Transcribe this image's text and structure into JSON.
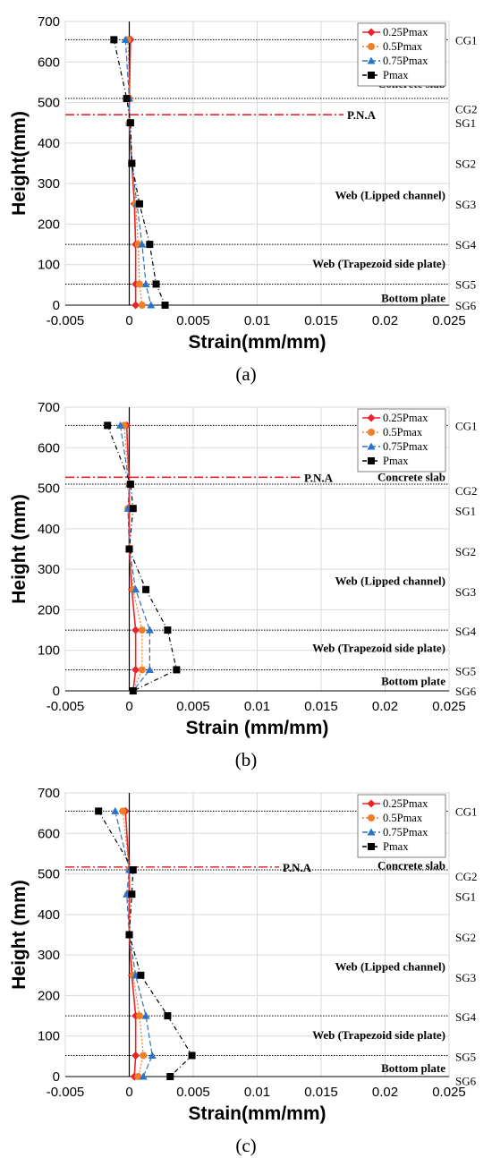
{
  "chart_data": [
    {
      "type": "line",
      "caption": "(a)",
      "xlabel": "Strain(mm/mm)",
      "ylabel": "Height(mm)",
      "xlim": [
        -0.005,
        0.025
      ],
      "ylim": [
        0,
        700
      ],
      "xticks": [
        "-0.005",
        "0",
        "0.005",
        "0.01",
        "0.015",
        "0.02",
        "0.025"
      ],
      "yticks": [
        "0",
        "100",
        "200",
        "300",
        "400",
        "500",
        "600",
        "700"
      ],
      "grid": true,
      "legend_position": "top-right",
      "pna": {
        "label": "P.N.A",
        "y": 470
      },
      "boundaries": [
        655,
        510,
        150,
        52
      ],
      "regions": [
        {
          "label": "Concrete slab",
          "y": 545
        },
        {
          "label": "Web (Lipped channel)",
          "y": 270
        },
        {
          "label": "Web (Trapezoid side plate)",
          "y": 102
        },
        {
          "label": "Bottom plate",
          "y": 17
        }
      ],
      "gauges": [
        {
          "label": "CG1",
          "y": 655
        },
        {
          "label": "CG2",
          "y": 485
        },
        {
          "label": "SG1",
          "y": 450
        },
        {
          "label": "SG2",
          "y": 350
        },
        {
          "label": "SG3",
          "y": 250
        },
        {
          "label": "SG4",
          "y": 150
        },
        {
          "label": "SG5",
          "y": 52
        },
        {
          "label": "SG6",
          "y": 0
        }
      ],
      "series": [
        {
          "name": "0.25Pmax",
          "color": "#e8242b",
          "x": [
            0.0001,
            0.0,
            0.0,
            0.0002,
            0.0004,
            0.0005,
            0.0005,
            0.0005
          ],
          "y": [
            655,
            510,
            450,
            350,
            250,
            150,
            52,
            0
          ]
        },
        {
          "name": "0.5Pmax",
          "color": "#f07e26",
          "x": [
            -0.0001,
            0.0,
            0.0,
            0.0002,
            0.0005,
            0.0007,
            0.0008,
            0.001
          ],
          "y": [
            655,
            510,
            450,
            350,
            250,
            150,
            52,
            0
          ]
        },
        {
          "name": "0.75Pmax",
          "color": "#2a73c8",
          "x": [
            -0.0003,
            0.0,
            0.0,
            0.0002,
            0.0006,
            0.001,
            0.0013,
            0.0017
          ],
          "y": [
            655,
            510,
            450,
            350,
            250,
            150,
            52,
            0
          ]
        },
        {
          "name": "Pmax",
          "color": "#000000",
          "x": [
            -0.0012,
            -0.0002,
            0.0001,
            0.0002,
            0.0008,
            0.0016,
            0.0021,
            0.0028
          ],
          "y": [
            655,
            510,
            450,
            350,
            250,
            150,
            52,
            0
          ]
        }
      ]
    },
    {
      "type": "line",
      "caption": "(b)",
      "xlabel": "Strain (mm/mm)",
      "ylabel": "Height (mm)",
      "xlim": [
        -0.005,
        0.025
      ],
      "ylim": [
        0,
        700
      ],
      "xticks": [
        "-0.005",
        "0",
        "0.005",
        "0.01",
        "0.015",
        "0.02",
        "0.025"
      ],
      "yticks": [
        "0",
        "100",
        "200",
        "300",
        "400",
        "500",
        "600",
        "700"
      ],
      "grid": true,
      "legend_position": "top-right",
      "pna": {
        "label": "P.N.A",
        "y": 527
      },
      "boundaries": [
        655,
        510,
        150,
        52
      ],
      "regions": [
        {
          "label": "Concrete slab",
          "y": 527
        },
        {
          "label": "Web (Lipped channel)",
          "y": 270
        },
        {
          "label": "Web (Trapezoid side plate)",
          "y": 105
        },
        {
          "label": "Bottom plate",
          "y": 23
        }
      ],
      "gauges": [
        {
          "label": "CG1",
          "y": 655
        },
        {
          "label": "CG2",
          "y": 495
        },
        {
          "label": "SG1",
          "y": 445
        },
        {
          "label": "SG2",
          "y": 345
        },
        {
          "label": "SG3",
          "y": 245
        },
        {
          "label": "SG4",
          "y": 148
        },
        {
          "label": "SG5",
          "y": 50
        },
        {
          "label": "SG6",
          "y": 0
        }
      ],
      "series": [
        {
          "name": "0.25Pmax",
          "color": "#e8242b",
          "x": [
            -0.0002,
            0.0,
            0.0,
            0.0,
            0.0002,
            0.0005,
            0.0005,
            0.0003
          ],
          "y": [
            655,
            510,
            450,
            350,
            250,
            150,
            52,
            0
          ]
        },
        {
          "name": "0.5Pmax",
          "color": "#f07e26",
          "x": [
            -0.0004,
            0.0,
            -0.0001,
            0.0,
            0.0003,
            0.001,
            0.001,
            0.0003
          ],
          "y": [
            655,
            510,
            450,
            350,
            250,
            150,
            52,
            0
          ]
        },
        {
          "name": "0.75Pmax",
          "color": "#2a73c8",
          "x": [
            -0.0007,
            0.0,
            -0.0001,
            0.0,
            0.0005,
            0.0016,
            0.0016,
            0.0003
          ],
          "y": [
            655,
            510,
            450,
            350,
            250,
            150,
            52,
            0
          ]
        },
        {
          "name": "Pmax",
          "color": "#000000",
          "x": [
            -0.0017,
            0.0001,
            0.0003,
            0.0,
            0.0013,
            0.003,
            0.0037,
            0.0003
          ],
          "y": [
            655,
            510,
            450,
            350,
            250,
            150,
            52,
            0
          ]
        }
      ]
    },
    {
      "type": "line",
      "caption": "(c)",
      "xlabel": "Strain(mm/mm)",
      "ylabel": "Height (mm)",
      "xlim": [
        -0.005,
        0.025
      ],
      "ylim": [
        0,
        700
      ],
      "xticks": [
        "-0.005",
        "0",
        "0.005",
        "0.01",
        "0.015",
        "0.02",
        "0.025"
      ],
      "yticks": [
        "0",
        "100",
        "200",
        "300",
        "400",
        "500",
        "600",
        "700"
      ],
      "grid": true,
      "legend_position": "top-right",
      "pna": {
        "label": "P.N.A",
        "y": 517
      },
      "boundaries": [
        655,
        510,
        150,
        52
      ],
      "regions": [
        {
          "label": "Concrete slab",
          "y": 520
        },
        {
          "label": "Web (Lipped channel)",
          "y": 270
        },
        {
          "label": "Web (Trapezoid side plate)",
          "y": 102
        },
        {
          "label": "Bottom plate",
          "y": 20
        }
      ],
      "gauges": [
        {
          "label": "CG1",
          "y": 655
        },
        {
          "label": "CG2",
          "y": 495
        },
        {
          "label": "SG1",
          "y": 445
        },
        {
          "label": "SG2",
          "y": 345
        },
        {
          "label": "SG3",
          "y": 245
        },
        {
          "label": "SG4",
          "y": 148
        },
        {
          "label": "SG5",
          "y": 50
        },
        {
          "label": "SG6",
          "y": -10
        }
      ],
      "series": [
        {
          "name": "0.25Pmax",
          "color": "#e8242b",
          "x": [
            -0.0003,
            0.0,
            0.0,
            0.0,
            0.0002,
            0.0005,
            0.0005,
            0.0004
          ],
          "y": [
            655,
            510,
            450,
            350,
            250,
            150,
            52,
            0
          ]
        },
        {
          "name": "0.5Pmax",
          "color": "#f07e26",
          "x": [
            -0.0005,
            0.0,
            -0.0001,
            0.0,
            0.0003,
            0.0008,
            0.0011,
            0.0007
          ],
          "y": [
            655,
            510,
            450,
            350,
            250,
            150,
            52,
            0
          ]
        },
        {
          "name": "0.75Pmax",
          "color": "#2a73c8",
          "x": [
            -0.0011,
            0.0,
            -0.0002,
            0.0,
            0.0005,
            0.0013,
            0.0018,
            0.0011
          ],
          "y": [
            655,
            510,
            450,
            350,
            250,
            150,
            52,
            0
          ]
        },
        {
          "name": "Pmax",
          "color": "#000000",
          "x": [
            -0.0024,
            0.0003,
            0.0002,
            0.0,
            0.0009,
            0.003,
            0.0049,
            0.0032
          ],
          "y": [
            655,
            510,
            450,
            350,
            250,
            150,
            52,
            0
          ]
        }
      ]
    }
  ]
}
